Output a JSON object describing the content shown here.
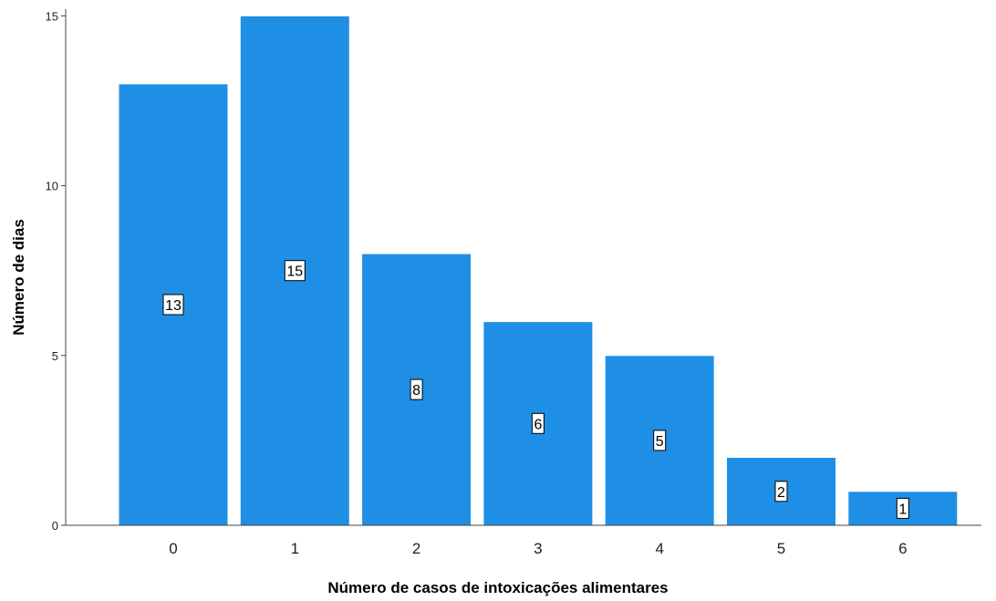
{
  "chart_data": {
    "type": "bar",
    "categories": [
      "0",
      "1",
      "2",
      "3",
      "4",
      "5",
      "6"
    ],
    "values": [
      13,
      15,
      8,
      6,
      5,
      2,
      1
    ],
    "data_labels": [
      "13",
      "15",
      "8",
      "6",
      "5",
      "2",
      "1"
    ],
    "xlabel": "Número de casos de intoxicações alimentares",
    "ylabel": "Número de dias",
    "ylim": [
      0,
      15.2
    ],
    "yticks": [
      0,
      5,
      10,
      15
    ],
    "ytick_labels": [
      "0",
      "5",
      "10",
      "15"
    ],
    "grid": false,
    "bar_color": "#1f8fe5",
    "bar_border_color": "#ffffff"
  }
}
